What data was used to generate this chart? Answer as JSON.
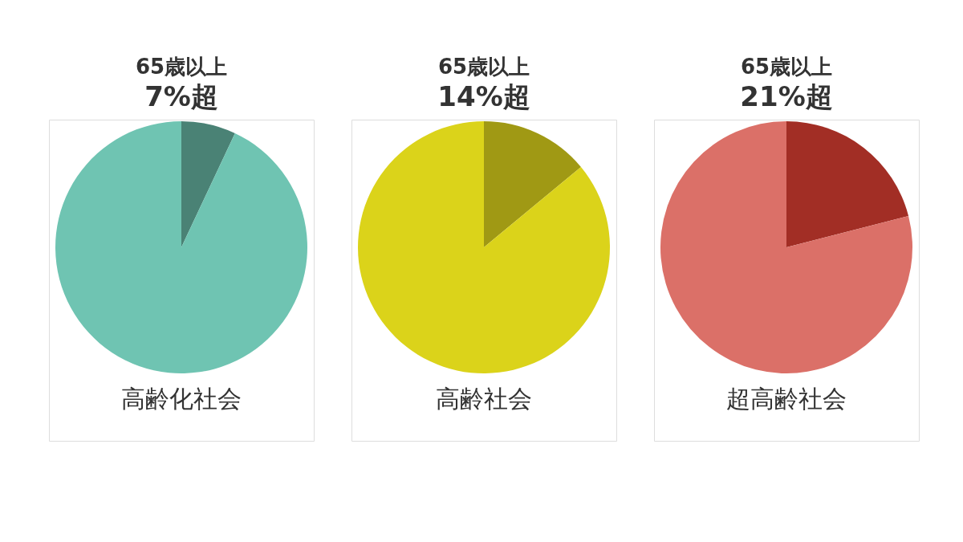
{
  "chart_data": [
    {
      "type": "pie",
      "title": "65歳以上",
      "subtitle": "7%超",
      "categories": [
        null,
        null
      ],
      "values": [
        7,
        93
      ],
      "colors": [
        "#4a8275",
        "#6fc4b2"
      ],
      "annotations": [
        "高齢化社会"
      ],
      "legend": false
    },
    {
      "type": "pie",
      "title": "65歳以上",
      "subtitle": "14%超",
      "categories": [
        null,
        null
      ],
      "values": [
        14,
        86
      ],
      "colors": [
        "#a09914",
        "#dbd31a"
      ],
      "annotations": [
        "高齢社会"
      ],
      "legend": false
    },
    {
      "type": "pie",
      "title": "65歳以上",
      "subtitle": "21%超",
      "categories": [
        null,
        null
      ],
      "values": [
        21,
        79
      ],
      "colors": [
        "#a22e25",
        "#db7068"
      ],
      "annotations": [
        "超高齢社会"
      ],
      "legend": false
    }
  ]
}
